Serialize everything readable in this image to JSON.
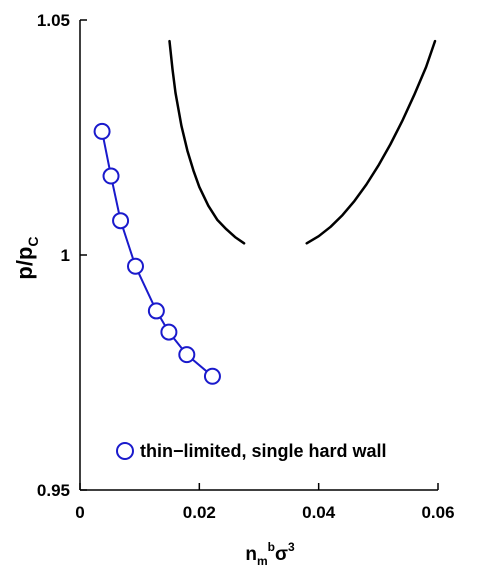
{
  "chart_data": {
    "type": "line",
    "title": "",
    "xlabel": {
      "base": "n",
      "sub": "m",
      "sup1": "b",
      "mid": "σ",
      "sup2": "3"
    },
    "ylabel": {
      "base": "p/p",
      "sub": "C"
    },
    "xlim": [
      0,
      0.06
    ],
    "ylim": [
      0.95,
      1.05
    ],
    "x_ticks": [
      {
        "value": 0,
        "label": "0"
      },
      {
        "value": 0.02,
        "label": "0.02"
      },
      {
        "value": 0.04,
        "label": "0.04"
      },
      {
        "value": 0.06,
        "label": "0.06"
      }
    ],
    "y_ticks": [
      {
        "value": 0.95,
        "label": "0.95"
      },
      {
        "value": 1.0,
        "label": "1"
      },
      {
        "value": 1.05,
        "label": "1.05"
      }
    ],
    "grid": false,
    "legend_position": "bottom-right",
    "series": [
      {
        "name": "thin−limited, single hard wall",
        "color": "#1a1acc",
        "marker": "open-circle",
        "x": [
          0.0037,
          0.0052,
          0.0068,
          0.0093,
          0.0128,
          0.0149,
          0.0179,
          0.0222
        ],
        "y": [
          1.0263,
          1.0168,
          1.0073,
          0.9976,
          0.9881,
          0.9836,
          0.9788,
          0.9742
        ]
      },
      {
        "color": "#000000",
        "marker": "none",
        "x": [
          0.015,
          0.0155,
          0.016,
          0.017,
          0.018,
          0.019,
          0.02,
          0.0215,
          0.023,
          0.0245,
          0.026,
          0.0275
        ],
        "y": [
          1.0455,
          1.0395,
          1.0345,
          1.0275,
          1.0222,
          1.018,
          1.0145,
          1.0105,
          1.0075,
          1.0055,
          1.0038,
          1.0025
        ]
      },
      {
        "color": "#000000",
        "marker": "none",
        "x": [
          0.038,
          0.04,
          0.042,
          0.044,
          0.046,
          0.048,
          0.05,
          0.052,
          0.054,
          0.056,
          0.058,
          0.0595
        ],
        "y": [
          1.0025,
          1.004,
          1.006,
          1.0085,
          1.0115,
          1.015,
          1.019,
          1.0235,
          1.0285,
          1.034,
          1.04,
          1.0455
        ]
      }
    ]
  }
}
